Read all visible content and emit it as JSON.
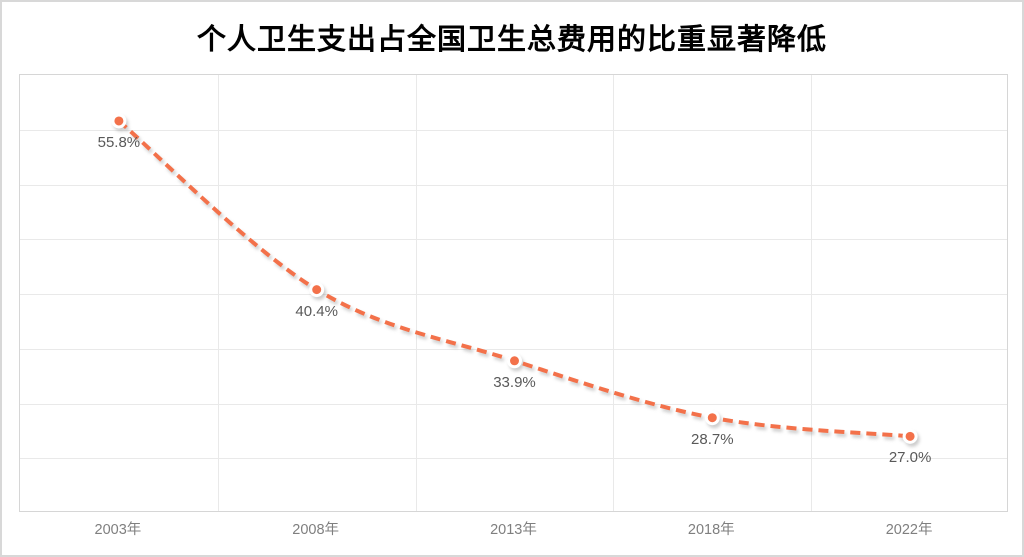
{
  "window": {
    "background": "#ffffff",
    "border_color": "#d8d8d8"
  },
  "chart_data": {
    "type": "line",
    "title": "个人卫生支出占全国卫生总费用的比重显著降低",
    "categories": [
      "2003年",
      "2008年",
      "2013年",
      "2018年",
      "2022年"
    ],
    "values": [
      55.8,
      40.4,
      33.9,
      28.7,
      27.0
    ],
    "point_labels": [
      "55.8%",
      "40.4%",
      "33.9%",
      "28.7%",
      "27.0%"
    ],
    "xlabel": "",
    "ylabel": "",
    "ylim": [
      20,
      60
    ],
    "y_gridline_interval": 5,
    "y_axis_labels_visible": false,
    "grid": true,
    "legend": "none",
    "line_style": "dashed",
    "smooth": true,
    "colors": {
      "line": "#f3714a",
      "marker_fill": "#f3714a",
      "marker_ring": "#ffffff",
      "point_label": "#595959",
      "axis_label": "#7f7f7f",
      "gridline": "#e9e9e9",
      "plot_border": "#d6d6d6",
      "title": "#000000"
    }
  }
}
